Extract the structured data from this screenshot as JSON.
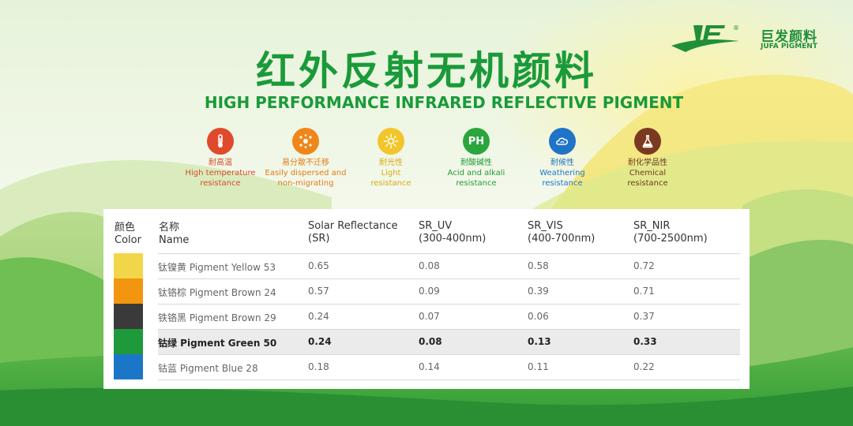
{
  "brand": {
    "name_cn": "巨发颜料",
    "name_en": "JUFA PIGMENT",
    "registered_mark": "®",
    "color": "#1f8f3a"
  },
  "title": {
    "cn": "红外反射无机颜料",
    "en": "HIGH PERFORMANCE INFRARED REFLECTIVE PIGMENT",
    "color": "#1a9a39"
  },
  "features": [
    {
      "icon": "thermometer-icon",
      "icon_color": "#e04a2c",
      "text_color": "#d64a2a",
      "cn": "耐高温",
      "en": "High temperature\nresistance"
    },
    {
      "icon": "disperse-dots-icon",
      "icon_color": "#f0861a",
      "text_color": "#e47b18",
      "cn": "易分散不迁移",
      "en": "Easily dispersed and\nnon-migrating"
    },
    {
      "icon": "sun-icon",
      "icon_color": "#f2c52a",
      "text_color": "#d8aa10",
      "cn": "耐光性",
      "en": "Light\nresistance"
    },
    {
      "icon": "ph-icon",
      "icon_label": "PH",
      "icon_color": "#2aa63c",
      "text_color": "#249a36",
      "cn": "耐酸碱性",
      "en": "Acid and alkali\nresistance"
    },
    {
      "icon": "cloud-icon",
      "icon_color": "#1f74c8",
      "text_color": "#1f74c8",
      "cn": "耐候性",
      "en": "Weathering\nresistance"
    },
    {
      "icon": "flask-icon",
      "icon_color": "#7a3a1f",
      "text_color": "#6b3a22",
      "cn": "耐化学品性",
      "en": "Chemical\nresistance"
    }
  ],
  "table": {
    "headers": {
      "color": {
        "cn": "颜色",
        "en": "Color"
      },
      "name": {
        "cn": "名称",
        "en": "Name"
      },
      "sr": {
        "line1": "Solar Reflectance",
        "line2": "(SR)"
      },
      "uv": {
        "line1": "SR_UV",
        "line2": "(300-400nm)"
      },
      "vis": {
        "line1": "SR_VIS",
        "line2": "(400-700nm)"
      },
      "nir": {
        "line1": "SR_NIR",
        "line2": "(700-2500nm)"
      }
    },
    "rows": [
      {
        "swatch": "#f2d64a",
        "name": "钛镍黄 Pigment Yellow 53",
        "sr": "0.65",
        "uv": "0.08",
        "vis": "0.58",
        "nir": "0.72",
        "highlight": false
      },
      {
        "swatch": "#f2960f",
        "name": "钛铬棕 Pigment Brown 24",
        "sr": "0.57",
        "uv": "0.09",
        "vis": "0.39",
        "nir": "0.71",
        "highlight": false
      },
      {
        "swatch": "#3a3a3a",
        "name": "铁铬黑 Pigment Brown 29",
        "sr": "0.24",
        "uv": "0.07",
        "vis": "0.06",
        "nir": "0.37",
        "highlight": false
      },
      {
        "swatch": "#1f9a3a",
        "name": "钴绿 Pigment Green 50",
        "sr": "0.24",
        "uv": "0.08",
        "vis": "0.13",
        "nir": "0.33",
        "highlight": true
      },
      {
        "swatch": "#1c76c8",
        "name": "钴蓝 Pigment Blue 28",
        "sr": "0.18",
        "uv": "0.14",
        "vis": "0.11",
        "nir": "0.22",
        "highlight": false
      }
    ]
  }
}
